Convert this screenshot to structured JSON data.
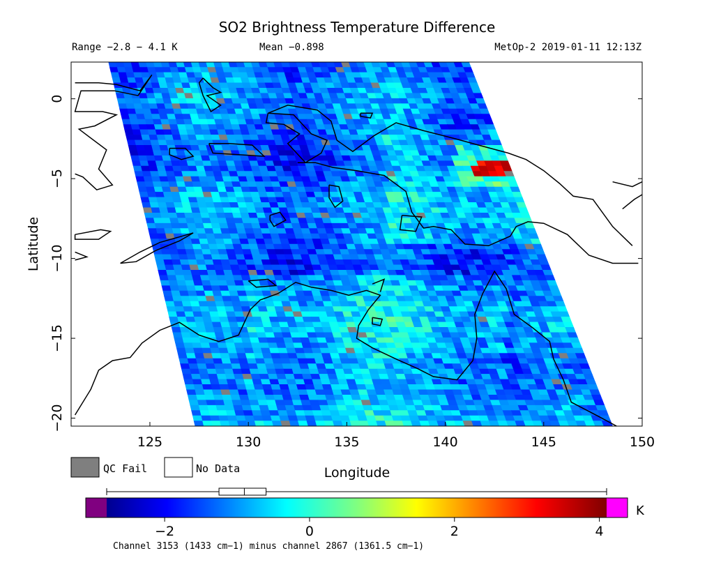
{
  "chart_data": {
    "type": "heatmap",
    "title": "SO2 Brightness Temperature Difference",
    "header": {
      "range": "Range −2.8 − 4.1 K",
      "mean": "Mean −0.898",
      "source": "MetOp-2 2019-01-11 12:13Z"
    },
    "xlabel": "Longitude",
    "ylabel": "Latitude",
    "xlim": [
      121,
      150
    ],
    "ylim": [
      -20.5,
      2.3
    ],
    "x_ticks": [
      125,
      130,
      135,
      140,
      145,
      150
    ],
    "y_ticks": [
      0,
      -5,
      -10,
      -15,
      -20
    ],
    "legend": [
      {
        "label": "QC Fail",
        "color": "#7f7f7f"
      },
      {
        "label": "No Data",
        "color": "#ffffff"
      }
    ],
    "colorbar": {
      "min": -2.8,
      "max": 4.1,
      "ticks": [
        -2,
        0,
        2,
        4
      ],
      "unit": "K",
      "under_color": "#800080",
      "over_color": "#ff00ff",
      "box_whisker": {
        "min": -2.8,
        "q1": -1.25,
        "median": -0.9,
        "q3": -0.6,
        "max": 4.1
      }
    },
    "caption": "Channel 3153 (1433 cm−1) minus channel 2867 (1361.5 cm−1)",
    "swath_lon_lat_corners": {
      "top_left": [
        122.9,
        2.3
      ],
      "top_right": [
        141.2,
        2.3
      ],
      "bottom_right": [
        148.5,
        -20.5
      ],
      "bottom_left": [
        127.3,
        -20.5
      ]
    },
    "hotspot": {
      "lon_range": [
        141.5,
        144.5
      ],
      "lat": -4.3,
      "value": 3.8
    },
    "coastline_color": "#000000"
  }
}
